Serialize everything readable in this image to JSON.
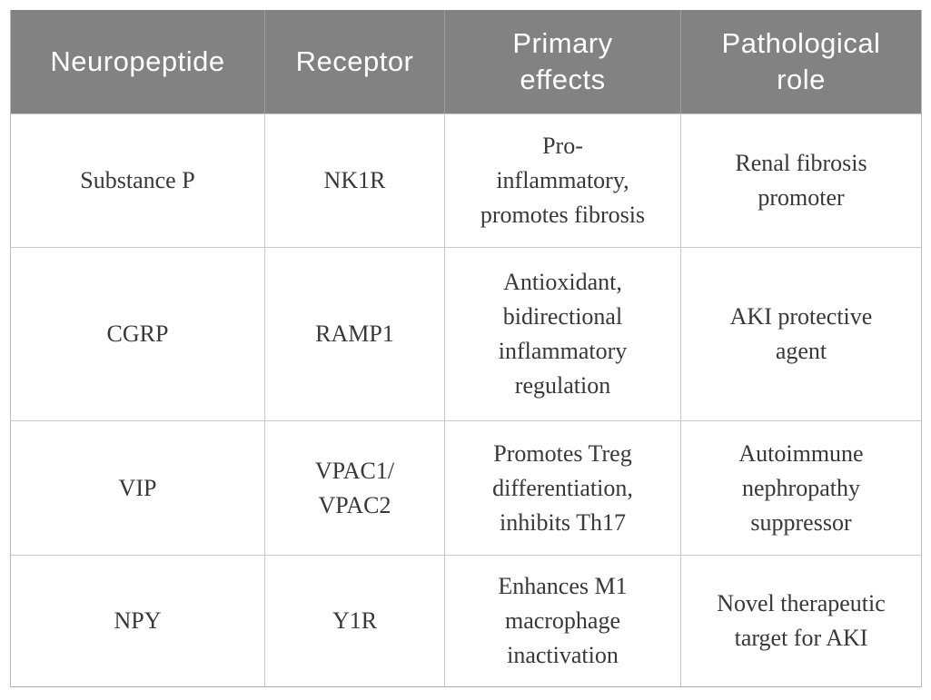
{
  "table": {
    "headers": [
      [
        "Neuropeptide"
      ],
      [
        "Receptor"
      ],
      [
        "Primary",
        "effects"
      ],
      [
        "Pathological",
        "role"
      ]
    ],
    "rows": [
      [
        [
          "Substance P"
        ],
        [
          "NK1R"
        ],
        [
          "Pro-",
          "inflammatory,",
          "promotes fibrosis"
        ],
        [
          "Renal fibrosis",
          "promoter"
        ]
      ],
      [
        [
          "CGRP"
        ],
        [
          "RAMP1"
        ],
        [
          "Antioxidant,",
          "bidirectional",
          "inflammatory",
          "regulation"
        ],
        [
          "AKI protective",
          "agent"
        ]
      ],
      [
        [
          "VIP"
        ],
        [
          "VPAC1/",
          "VPAC2"
        ],
        [
          "Promotes Treg",
          "differentiation,",
          "inhibits Th17"
        ],
        [
          "Autoimmune",
          "nephropathy",
          "suppressor"
        ]
      ],
      [
        [
          "NPY"
        ],
        [
          "Y1R"
        ],
        [
          "Enhances M1",
          "macrophage",
          "inactivation"
        ],
        [
          "Novel therapeutic",
          "target for AKI"
        ]
      ]
    ]
  },
  "chart_data": {
    "type": "table",
    "columns": [
      "Neuropeptide",
      "Receptor",
      "Primary effects",
      "Pathological role"
    ],
    "rows": [
      [
        "Substance P",
        "NK1R",
        "Pro-inflammatory, promotes fibrosis",
        "Renal fibrosis promoter"
      ],
      [
        "CGRP",
        "RAMP1",
        "Antioxidant, bidirectional inflammatory regulation",
        "AKI protective agent"
      ],
      [
        "VIP",
        "VPAC1/VPAC2",
        "Promotes Treg differentiation, inhibits Th17",
        "Autoimmune nephropathy suppressor"
      ],
      [
        "NPY",
        "Y1R",
        "Enhances M1 macrophage inactivation",
        "Novel therapeutic target for AKI"
      ]
    ]
  },
  "colors": {
    "header_bg": "#828282",
    "header_text": "#ffffff",
    "header_divider": "#9d9d9d",
    "body_text": "#383838",
    "grid_line": "#c9c9c9",
    "background": "#ffffff"
  }
}
